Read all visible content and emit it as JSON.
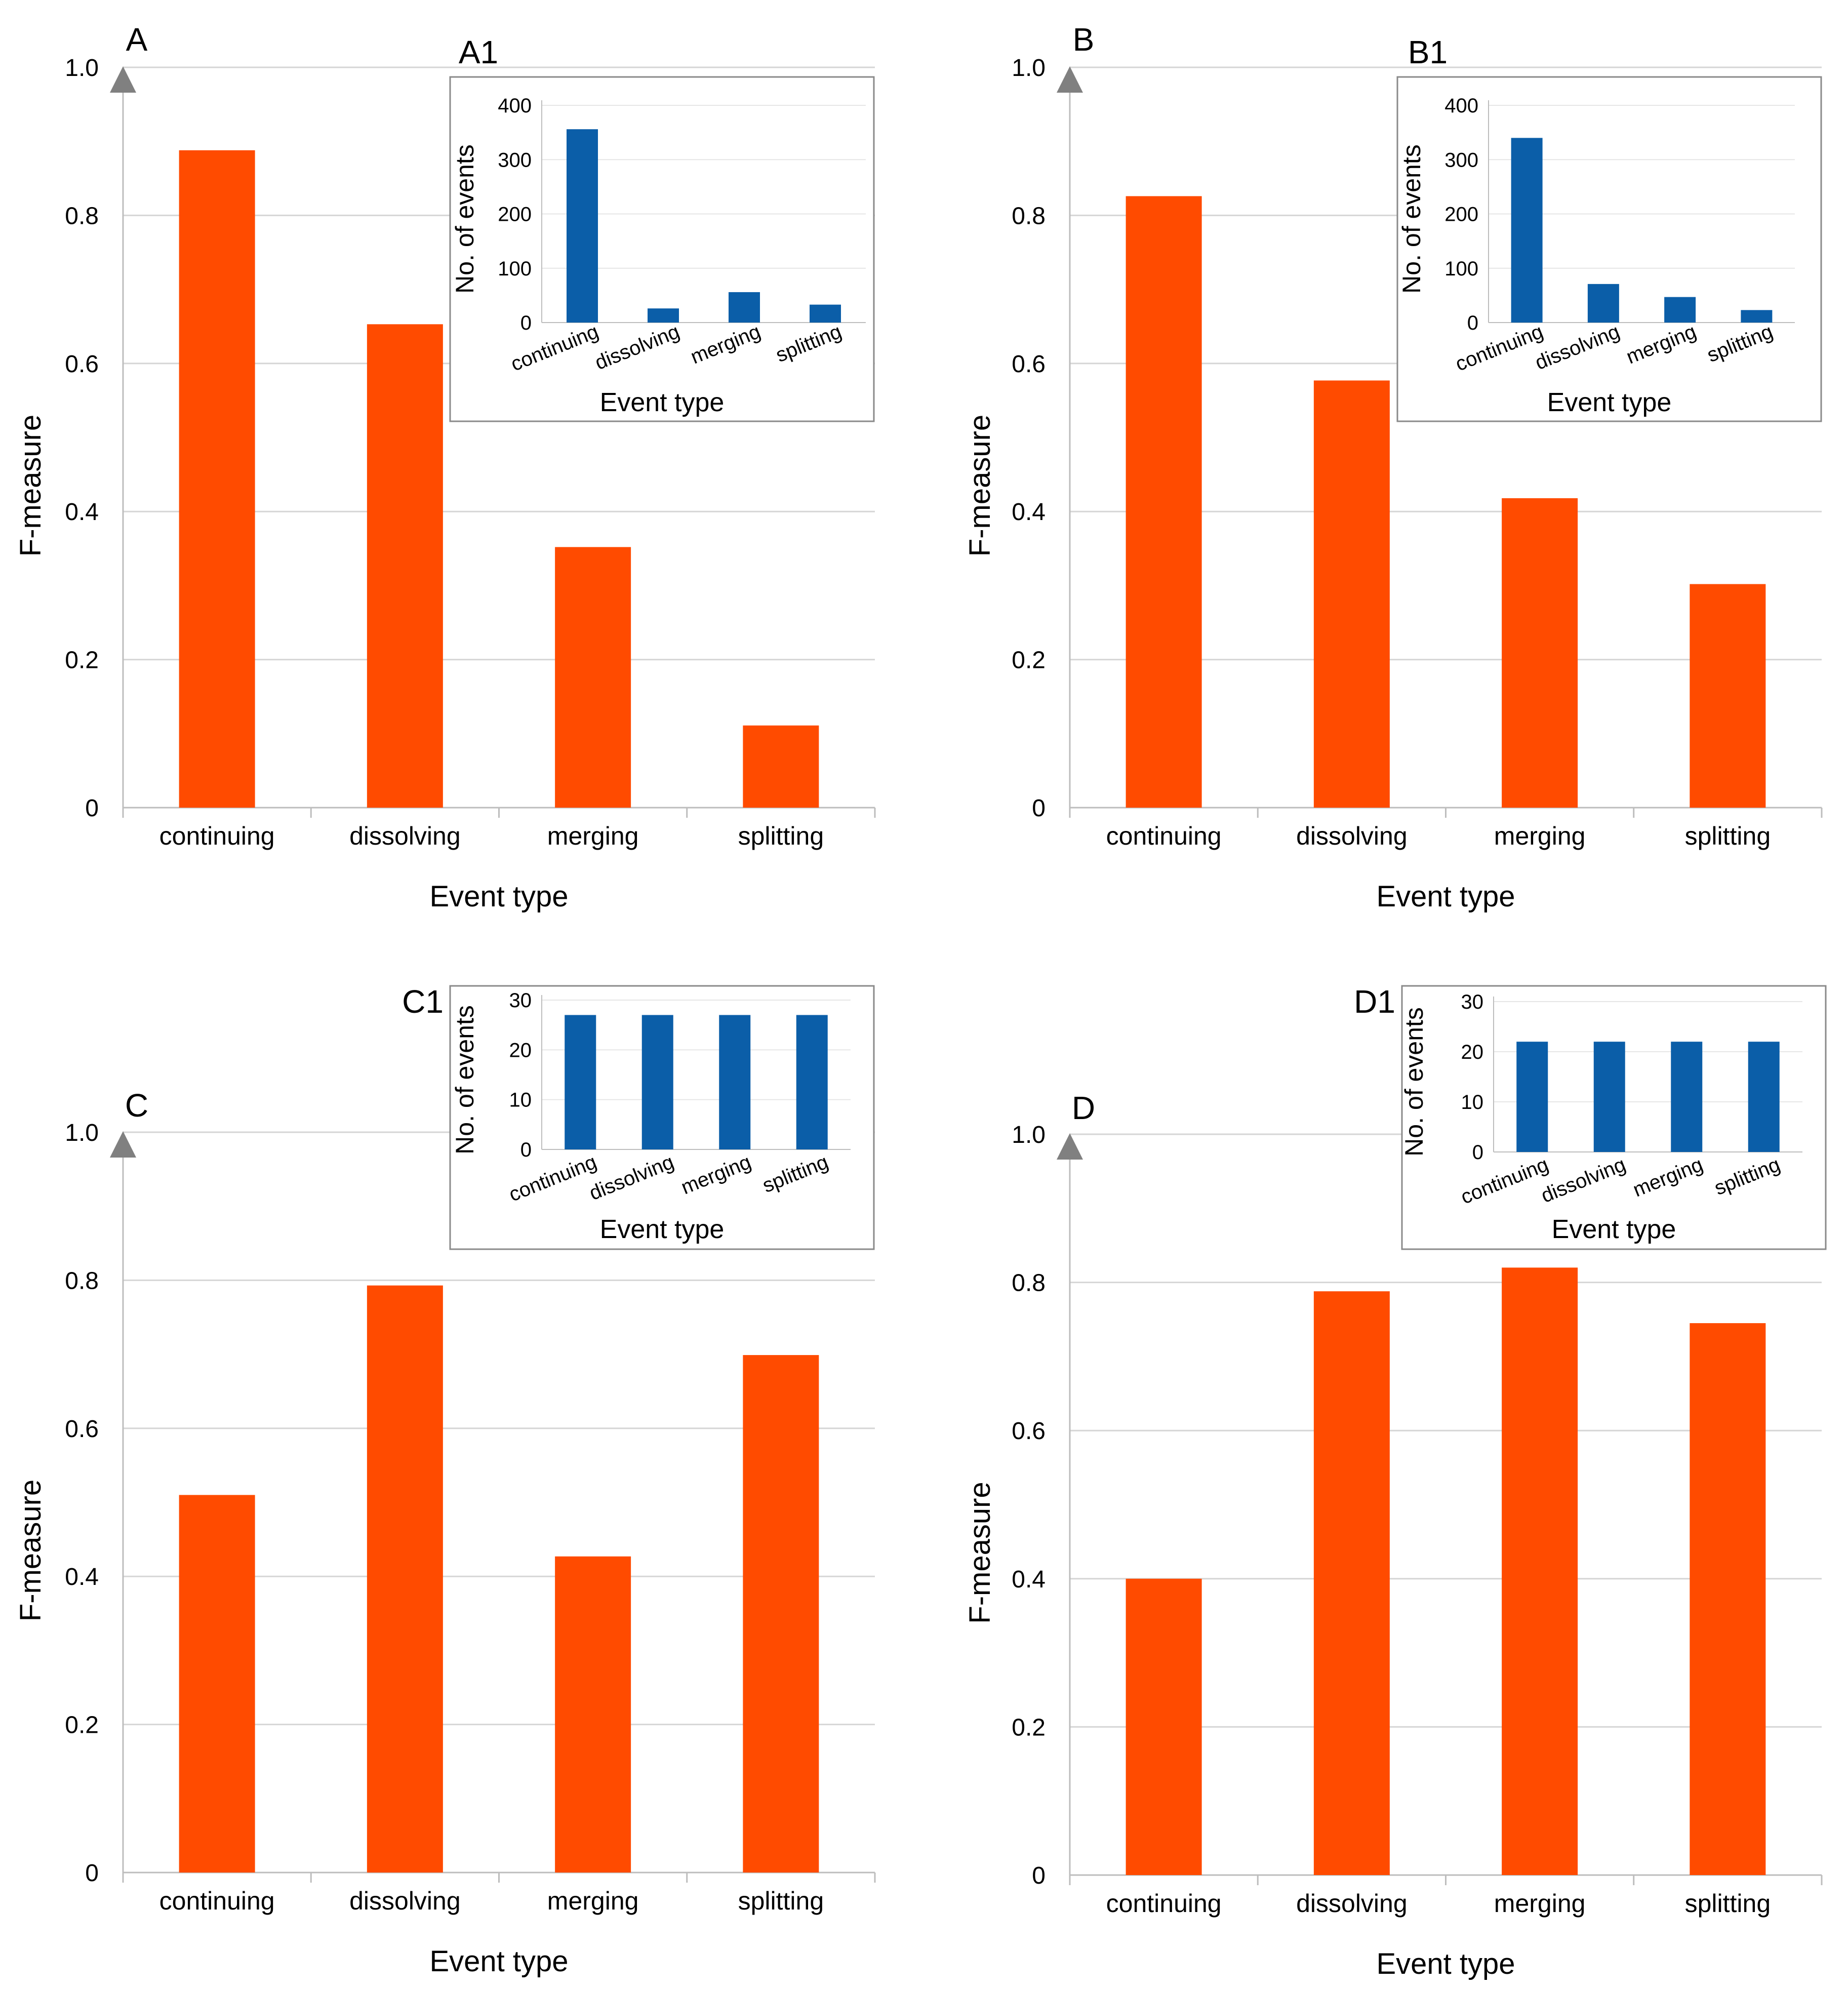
{
  "chart_data": [
    {
      "type": "bar",
      "panel_label": "A",
      "categories": [
        "continuing",
        "dissolving",
        "merging",
        "splitting"
      ],
      "values": [
        0.888,
        0.653,
        0.352,
        0.111
      ],
      "xlabel": "Event type",
      "ylabel": "F-measure",
      "ylim": [
        0,
        1.0
      ],
      "yticks": [
        "0",
        "0.2",
        "0.4",
        "0.6",
        "0.8",
        "1.0"
      ],
      "grid": true,
      "bar_color": "#ff4b00",
      "inset": {
        "type": "bar",
        "panel_label": "A1",
        "categories": [
          "continuing",
          "dissolving",
          "merging",
          "splitting"
        ],
        "values": [
          356,
          26,
          56,
          33
        ],
        "xlabel": "Event type",
        "ylabel": "No. of events",
        "ylim": [
          0,
          400
        ],
        "yticks": [
          "0",
          "100",
          "200",
          "300",
          "400"
        ],
        "bar_color": "#0b5ea8"
      }
    },
    {
      "type": "bar",
      "panel_label": "B",
      "categories": [
        "continuing",
        "dissolving",
        "merging",
        "splitting"
      ],
      "values": [
        0.826,
        0.577,
        0.418,
        0.302
      ],
      "xlabel": "Event type",
      "ylabel": "F-measure",
      "ylim": [
        0,
        1.0
      ],
      "yticks": [
        "0",
        "0.2",
        "0.4",
        "0.6",
        "0.8",
        "1.0"
      ],
      "grid": true,
      "bar_color": "#ff4b00",
      "inset": {
        "type": "bar",
        "panel_label": "B1",
        "categories": [
          "continuing",
          "dissolving",
          "merging",
          "splitting"
        ],
        "values": [
          340,
          71,
          47,
          23
        ],
        "xlabel": "Event type",
        "ylabel": "No. of events",
        "ylim": [
          0,
          400
        ],
        "yticks": [
          "0",
          "100",
          "200",
          "300",
          "400"
        ],
        "bar_color": "#0b5ea8"
      }
    },
    {
      "type": "bar",
      "panel_label": "C",
      "categories": [
        "continuing",
        "dissolving",
        "merging",
        "splitting"
      ],
      "values": [
        0.51,
        0.793,
        0.427,
        0.699
      ],
      "xlabel": "Event type",
      "ylabel": "F-measure",
      "ylim": [
        0,
        1.0
      ],
      "yticks": [
        "0",
        "0.2",
        "0.4",
        "0.6",
        "0.8",
        "1.0"
      ],
      "grid": true,
      "bar_color": "#ff4b00",
      "inset": {
        "type": "bar",
        "panel_label": "C1",
        "categories": [
          "continuing",
          "dissolving",
          "merging",
          "splitting"
        ],
        "values": [
          27,
          27,
          27,
          27
        ],
        "xlabel": "Event type",
        "ylabel": "No. of events",
        "ylim": [
          0,
          30
        ],
        "yticks": [
          "0",
          "10",
          "20",
          "30"
        ],
        "bar_color": "#0b5ea8"
      }
    },
    {
      "type": "bar",
      "panel_label": "D",
      "categories": [
        "continuing",
        "dissolving",
        "merging",
        "splitting"
      ],
      "values": [
        0.4,
        0.788,
        0.82,
        0.745
      ],
      "xlabel": "Event type",
      "ylabel": "F-measure",
      "ylim": [
        0,
        1.0
      ],
      "yticks": [
        "0",
        "0.2",
        "0.4",
        "0.6",
        "0.8",
        "1.0"
      ],
      "grid": true,
      "bar_color": "#ff4b00",
      "inset": {
        "type": "bar",
        "panel_label": "D1",
        "categories": [
          "continuing",
          "dissolving",
          "merging",
          "splitting"
        ],
        "values": [
          22,
          22,
          22,
          22
        ],
        "xlabel": "Event type",
        "ylabel": "No. of events",
        "ylim": [
          0,
          30
        ],
        "yticks": [
          "0",
          "10",
          "20",
          "30"
        ],
        "bar_color": "#0b5ea8"
      }
    }
  ]
}
